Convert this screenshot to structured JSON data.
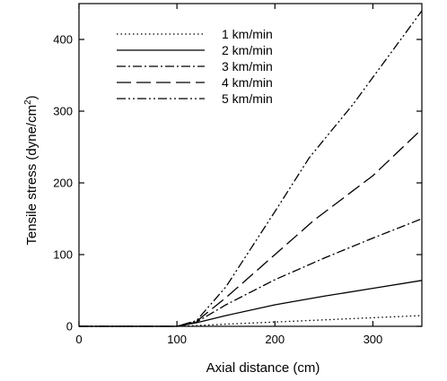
{
  "chart_data": {
    "type": "line",
    "title": "",
    "xlabel": "Axial distance (cm)",
    "ylabel": "Tensile stress (dyne/cm",
    "ylabel_sup": "2",
    "ylabel_close": ")",
    "xlim": [
      0,
      350
    ],
    "ylim": [
      0,
      450
    ],
    "xticks": [
      0,
      100,
      200,
      300
    ],
    "xtick_labels": [
      "0",
      "100",
      "200",
      "300"
    ],
    "yticks": [
      0,
      100,
      200,
      300,
      400
    ],
    "ytick_labels": [
      "0",
      "100",
      "200",
      "300",
      "400"
    ],
    "grid": false,
    "legend_position": "top-left",
    "series": [
      {
        "name": "1 km/min",
        "dash": "dotted",
        "x": [
          0,
          100,
          120,
          150,
          200,
          250,
          300,
          350
        ],
        "y": [
          0,
          0,
          1,
          3,
          6,
          9,
          12,
          15
        ]
      },
      {
        "name": "2 km/min",
        "dash": "solid",
        "x": [
          0,
          100,
          120,
          150,
          200,
          250,
          300,
          350
        ],
        "y": [
          0,
          0,
          5,
          15,
          30,
          42,
          53,
          64
        ]
      },
      {
        "name": "3 km/min",
        "dash": "dash-dot",
        "x": [
          0,
          100,
          120,
          150,
          200,
          250,
          300,
          350
        ],
        "y": [
          0,
          0,
          6,
          30,
          65,
          95,
          123,
          150
        ]
      },
      {
        "name": "4 km/min",
        "dash": "long-dash",
        "x": [
          0,
          100,
          120,
          150,
          200,
          240,
          300,
          350
        ],
        "y": [
          0,
          0,
          7,
          40,
          100,
          148,
          210,
          275
        ]
      },
      {
        "name": "5 km/min",
        "dash": "dash-dot-dot",
        "x": [
          0,
          100,
          120,
          150,
          200,
          235,
          280,
          350
        ],
        "y": [
          0,
          0,
          8,
          55,
          160,
          235,
          310,
          440
        ]
      }
    ]
  }
}
